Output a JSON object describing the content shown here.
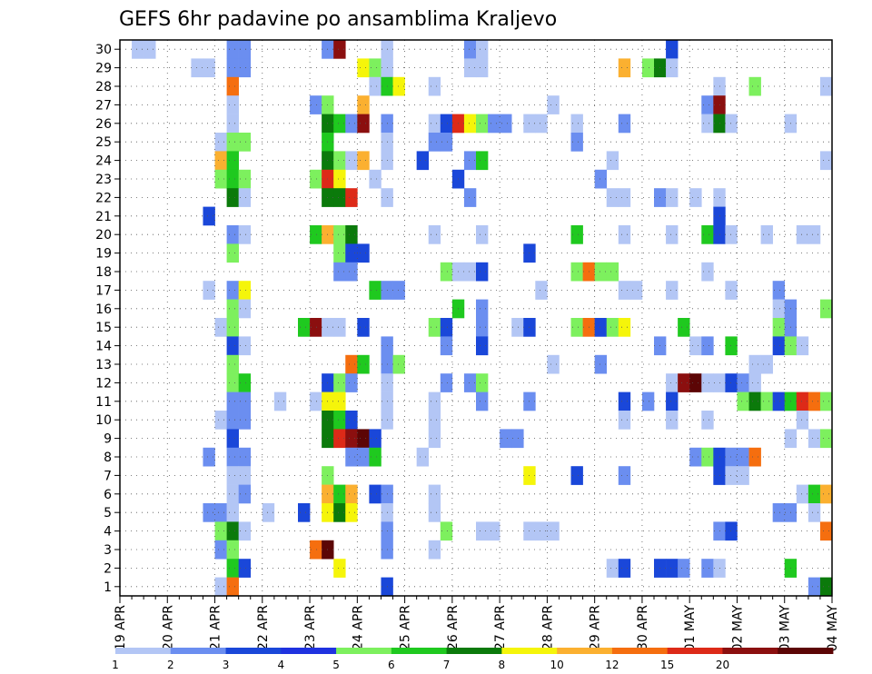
{
  "chart_data": {
    "type": "heatmap",
    "title": "GEFS 6hr padavine po ansamblima Kraljevo",
    "y_members": [
      1,
      2,
      3,
      4,
      5,
      6,
      7,
      8,
      9,
      10,
      11,
      12,
      13,
      14,
      15,
      16,
      17,
      18,
      19,
      20,
      21,
      22,
      23,
      24,
      25,
      26,
      27,
      28,
      29,
      30
    ],
    "x_tick_labels": [
      "19 APR",
      "20 APR",
      "21 APR",
      "22 APR",
      "23 APR",
      "24 APR",
      "25 APR",
      "26 APR",
      "27 APR",
      "28 APR",
      "29 APR",
      "30 APR",
      "01 MAY",
      "02 MAY",
      "03 MAY",
      "04 MAY"
    ],
    "x_steps_per_day": 4,
    "x_step_count": 60,
    "grid": true,
    "color_scale": {
      "labels": [
        "1",
        "2",
        "3",
        "4",
        "5",
        "6",
        "7",
        "8",
        "10",
        "12",
        "15",
        "20"
      ],
      "colors": [
        "#b3c6f5",
        "#6b8ef0",
        "#1a47d9",
        "#1f32e0",
        "#7df05e",
        "#1fc91f",
        "#0b7a0b",
        "#f5f50a",
        "#fbb030",
        "#f56e0f",
        "#dd2a18",
        "#8b0f0f",
        "#5c0505"
      ]
    },
    "cells": [
      [
        30,
        1,
        1
      ],
      [
        30,
        2,
        1
      ],
      [
        30,
        9,
        2
      ],
      [
        30,
        10,
        2
      ],
      [
        30,
        17,
        2
      ],
      [
        30,
        18,
        12
      ],
      [
        30,
        22,
        1
      ],
      [
        30,
        29,
        2
      ],
      [
        30,
        30,
        1
      ],
      [
        30,
        46,
        3
      ],
      [
        29,
        6,
        1
      ],
      [
        29,
        7,
        1
      ],
      [
        29,
        9,
        2
      ],
      [
        29,
        10,
        2
      ],
      [
        29,
        20,
        8
      ],
      [
        29,
        21,
        5
      ],
      [
        29,
        22,
        1
      ],
      [
        29,
        29,
        1
      ],
      [
        29,
        30,
        1
      ],
      [
        29,
        42,
        9
      ],
      [
        29,
        44,
        5
      ],
      [
        29,
        45,
        7
      ],
      [
        29,
        46,
        1
      ],
      [
        28,
        9,
        10
      ],
      [
        28,
        21,
        1
      ],
      [
        28,
        22,
        6
      ],
      [
        28,
        23,
        8
      ],
      [
        28,
        26,
        1
      ],
      [
        28,
        50,
        1
      ],
      [
        28,
        53,
        5
      ],
      [
        28,
        59,
        1
      ],
      [
        27,
        9,
        1
      ],
      [
        27,
        16,
        2
      ],
      [
        27,
        17,
        5
      ],
      [
        27,
        20,
        9
      ],
      [
        27,
        36,
        1
      ],
      [
        27,
        49,
        2
      ],
      [
        27,
        50,
        12
      ],
      [
        26,
        9,
        1
      ],
      [
        26,
        17,
        7
      ],
      [
        26,
        18,
        6
      ],
      [
        26,
        19,
        2
      ],
      [
        26,
        20,
        12
      ],
      [
        26,
        22,
        2
      ],
      [
        26,
        26,
        1
      ],
      [
        26,
        27,
        3
      ],
      [
        26,
        28,
        11
      ],
      [
        26,
        29,
        8
      ],
      [
        26,
        30,
        5
      ],
      [
        26,
        31,
        2
      ],
      [
        26,
        32,
        2
      ],
      [
        26,
        34,
        1
      ],
      [
        26,
        35,
        1
      ],
      [
        26,
        38,
        1
      ],
      [
        26,
        42,
        2
      ],
      [
        26,
        49,
        1
      ],
      [
        26,
        50,
        7
      ],
      [
        26,
        51,
        1
      ],
      [
        26,
        56,
        1
      ],
      [
        25,
        8,
        1
      ],
      [
        25,
        9,
        5
      ],
      [
        25,
        10,
        5
      ],
      [
        25,
        17,
        6
      ],
      [
        25,
        22,
        1
      ],
      [
        25,
        26,
        2
      ],
      [
        25,
        27,
        2
      ],
      [
        25,
        38,
        2
      ],
      [
        24,
        8,
        9
      ],
      [
        24,
        9,
        6
      ],
      [
        24,
        17,
        7
      ],
      [
        24,
        18,
        5
      ],
      [
        24,
        19,
        1
      ],
      [
        24,
        20,
        9
      ],
      [
        24,
        22,
        1
      ],
      [
        24,
        25,
        3
      ],
      [
        24,
        29,
        2
      ],
      [
        24,
        30,
        6
      ],
      [
        24,
        41,
        1
      ],
      [
        24,
        59,
        1
      ],
      [
        23,
        8,
        5
      ],
      [
        23,
        9,
        6
      ],
      [
        23,
        10,
        5
      ],
      [
        23,
        16,
        5
      ],
      [
        23,
        17,
        11
      ],
      [
        23,
        18,
        8
      ],
      [
        23,
        21,
        1
      ],
      [
        23,
        28,
        3
      ],
      [
        23,
        40,
        2
      ],
      [
        22,
        9,
        7
      ],
      [
        22,
        10,
        1
      ],
      [
        22,
        17,
        7
      ],
      [
        22,
        18,
        7
      ],
      [
        22,
        19,
        11
      ],
      [
        22,
        22,
        1
      ],
      [
        22,
        29,
        2
      ],
      [
        22,
        41,
        1
      ],
      [
        22,
        42,
        1
      ],
      [
        22,
        45,
        2
      ],
      [
        22,
        46,
        1
      ],
      [
        22,
        48,
        1
      ],
      [
        22,
        50,
        1
      ],
      [
        21,
        7,
        3
      ],
      [
        21,
        50,
        3
      ],
      [
        20,
        9,
        2
      ],
      [
        20,
        10,
        1
      ],
      [
        20,
        16,
        6
      ],
      [
        20,
        17,
        9
      ],
      [
        20,
        18,
        5
      ],
      [
        20,
        19,
        7
      ],
      [
        20,
        26,
        1
      ],
      [
        20,
        30,
        1
      ],
      [
        20,
        38,
        6
      ],
      [
        20,
        42,
        1
      ],
      [
        20,
        46,
        1
      ],
      [
        20,
        49,
        6
      ],
      [
        20,
        50,
        3
      ],
      [
        20,
        51,
        1
      ],
      [
        20,
        54,
        1
      ],
      [
        20,
        57,
        1
      ],
      [
        20,
        58,
        1
      ],
      [
        19,
        9,
        5
      ],
      [
        19,
        18,
        5
      ],
      [
        19,
        19,
        3
      ],
      [
        19,
        20,
        3
      ],
      [
        19,
        34,
        3
      ],
      [
        18,
        18,
        2
      ],
      [
        18,
        19,
        2
      ],
      [
        18,
        27,
        5
      ],
      [
        18,
        28,
        1
      ],
      [
        18,
        29,
        1
      ],
      [
        18,
        30,
        3
      ],
      [
        18,
        38,
        5
      ],
      [
        18,
        39,
        10
      ],
      [
        18,
        40,
        5
      ],
      [
        18,
        41,
        5
      ],
      [
        18,
        49,
        1
      ],
      [
        17,
        7,
        1
      ],
      [
        17,
        9,
        2
      ],
      [
        17,
        10,
        8
      ],
      [
        17,
        21,
        6
      ],
      [
        17,
        22,
        2
      ],
      [
        17,
        23,
        2
      ],
      [
        17,
        35,
        1
      ],
      [
        17,
        42,
        1
      ],
      [
        17,
        43,
        1
      ],
      [
        17,
        46,
        1
      ],
      [
        17,
        51,
        1
      ],
      [
        17,
        55,
        2
      ],
      [
        16,
        9,
        5
      ],
      [
        16,
        10,
        1
      ],
      [
        16,
        28,
        6
      ],
      [
        16,
        30,
        2
      ],
      [
        16,
        55,
        1
      ],
      [
        16,
        56,
        2
      ],
      [
        16,
        59,
        5
      ],
      [
        15,
        8,
        1
      ],
      [
        15,
        9,
        5
      ],
      [
        15,
        15,
        6
      ],
      [
        15,
        16,
        12
      ],
      [
        15,
        17,
        1
      ],
      [
        15,
        18,
        1
      ],
      [
        15,
        20,
        3
      ],
      [
        15,
        26,
        5
      ],
      [
        15,
        27,
        3
      ],
      [
        15,
        30,
        2
      ],
      [
        15,
        33,
        1
      ],
      [
        15,
        34,
        3
      ],
      [
        15,
        38,
        5
      ],
      [
        15,
        39,
        10
      ],
      [
        15,
        40,
        3
      ],
      [
        15,
        41,
        5
      ],
      [
        15,
        42,
        8
      ],
      [
        15,
        47,
        6
      ],
      [
        15,
        55,
        5
      ],
      [
        15,
        56,
        2
      ],
      [
        14,
        9,
        3
      ],
      [
        14,
        10,
        1
      ],
      [
        14,
        22,
        2
      ],
      [
        14,
        27,
        2
      ],
      [
        14,
        30,
        3
      ],
      [
        14,
        45,
        2
      ],
      [
        14,
        48,
        1
      ],
      [
        14,
        49,
        2
      ],
      [
        14,
        51,
        6
      ],
      [
        14,
        55,
        3
      ],
      [
        14,
        56,
        5
      ],
      [
        14,
        57,
        1
      ],
      [
        13,
        9,
        5
      ],
      [
        13,
        19,
        10
      ],
      [
        13,
        20,
        6
      ],
      [
        13,
        22,
        2
      ],
      [
        13,
        23,
        5
      ],
      [
        13,
        36,
        1
      ],
      [
        13,
        40,
        2
      ],
      [
        13,
        53,
        1
      ],
      [
        13,
        54,
        1
      ],
      [
        12,
        9,
        5
      ],
      [
        12,
        10,
        6
      ],
      [
        12,
        17,
        3
      ],
      [
        12,
        18,
        5
      ],
      [
        12,
        19,
        2
      ],
      [
        12,
        22,
        1
      ],
      [
        12,
        27,
        2
      ],
      [
        12,
        29,
        2
      ],
      [
        12,
        30,
        5
      ],
      [
        12,
        46,
        1
      ],
      [
        12,
        47,
        12
      ],
      [
        12,
        48,
        13
      ],
      [
        12,
        49,
        1
      ],
      [
        12,
        50,
        1
      ],
      [
        12,
        51,
        3
      ],
      [
        12,
        52,
        2
      ],
      [
        12,
        53,
        1
      ],
      [
        11,
        9,
        2
      ],
      [
        11,
        10,
        2
      ],
      [
        11,
        13,
        1
      ],
      [
        11,
        16,
        1
      ],
      [
        11,
        17,
        8
      ],
      [
        11,
        18,
        8
      ],
      [
        11,
        22,
        1
      ],
      [
        11,
        26,
        1
      ],
      [
        11,
        30,
        2
      ],
      [
        11,
        34,
        2
      ],
      [
        11,
        42,
        3
      ],
      [
        11,
        44,
        2
      ],
      [
        11,
        46,
        3
      ],
      [
        11,
        52,
        5
      ],
      [
        11,
        53,
        7
      ],
      [
        11,
        54,
        5
      ],
      [
        11,
        55,
        3
      ],
      [
        11,
        56,
        6
      ],
      [
        11,
        57,
        11
      ],
      [
        11,
        58,
        10
      ],
      [
        11,
        59,
        5
      ],
      [
        10,
        8,
        1
      ],
      [
        10,
        9,
        2
      ],
      [
        10,
        10,
        2
      ],
      [
        10,
        17,
        7
      ],
      [
        10,
        18,
        6
      ],
      [
        10,
        19,
        3
      ],
      [
        10,
        22,
        1
      ],
      [
        10,
        26,
        1
      ],
      [
        10,
        42,
        1
      ],
      [
        10,
        46,
        1
      ],
      [
        10,
        49,
        1
      ],
      [
        10,
        57,
        1
      ],
      [
        9,
        9,
        3
      ],
      [
        9,
        17,
        7
      ],
      [
        9,
        18,
        11
      ],
      [
        9,
        19,
        12
      ],
      [
        9,
        20,
        13
      ],
      [
        9,
        21,
        3
      ],
      [
        9,
        26,
        1
      ],
      [
        9,
        32,
        2
      ],
      [
        9,
        33,
        2
      ],
      [
        9,
        56,
        1
      ],
      [
        9,
        58,
        1
      ],
      [
        9,
        59,
        5
      ],
      [
        8,
        7,
        2
      ],
      [
        8,
        9,
        2
      ],
      [
        8,
        10,
        2
      ],
      [
        8,
        19,
        2
      ],
      [
        8,
        20,
        2
      ],
      [
        8,
        21,
        6
      ],
      [
        8,
        25,
        1
      ],
      [
        8,
        48,
        2
      ],
      [
        8,
        49,
        5
      ],
      [
        8,
        50,
        3
      ],
      [
        8,
        51,
        2
      ],
      [
        8,
        52,
        2
      ],
      [
        8,
        53,
        10
      ],
      [
        7,
        9,
        1
      ],
      [
        7,
        10,
        1
      ],
      [
        7,
        17,
        5
      ],
      [
        7,
        34,
        8
      ],
      [
        7,
        38,
        3
      ],
      [
        7,
        42,
        2
      ],
      [
        7,
        50,
        3
      ],
      [
        7,
        51,
        1
      ],
      [
        7,
        52,
        1
      ],
      [
        6,
        9,
        1
      ],
      [
        6,
        10,
        2
      ],
      [
        6,
        17,
        9
      ],
      [
        6,
        18,
        6
      ],
      [
        6,
        19,
        9
      ],
      [
        6,
        21,
        3
      ],
      [
        6,
        22,
        2
      ],
      [
        6,
        26,
        1
      ],
      [
        6,
        57,
        1
      ],
      [
        6,
        58,
        6
      ],
      [
        6,
        59,
        9
      ],
      [
        5,
        7,
        2
      ],
      [
        5,
        8,
        2
      ],
      [
        5,
        9,
        1
      ],
      [
        5,
        12,
        1
      ],
      [
        5,
        15,
        3
      ],
      [
        5,
        17,
        8
      ],
      [
        5,
        18,
        7
      ],
      [
        5,
        19,
        8
      ],
      [
        5,
        22,
        1
      ],
      [
        5,
        26,
        1
      ],
      [
        5,
        55,
        2
      ],
      [
        5,
        56,
        2
      ],
      [
        5,
        58,
        1
      ],
      [
        4,
        8,
        5
      ],
      [
        4,
        9,
        7
      ],
      [
        4,
        10,
        1
      ],
      [
        4,
        22,
        2
      ],
      [
        4,
        27,
        5
      ],
      [
        4,
        30,
        1
      ],
      [
        4,
        31,
        1
      ],
      [
        4,
        34,
        1
      ],
      [
        4,
        35,
        1
      ],
      [
        4,
        36,
        1
      ],
      [
        4,
        50,
        2
      ],
      [
        4,
        51,
        3
      ],
      [
        4,
        59,
        10
      ],
      [
        3,
        8,
        2
      ],
      [
        3,
        9,
        5
      ],
      [
        3,
        16,
        10
      ],
      [
        3,
        17,
        13
      ],
      [
        3,
        22,
        2
      ],
      [
        3,
        26,
        1
      ],
      [
        2,
        9,
        6
      ],
      [
        2,
        10,
        3
      ],
      [
        2,
        18,
        8
      ],
      [
        2,
        41,
        1
      ],
      [
        2,
        42,
        3
      ],
      [
        2,
        45,
        3
      ],
      [
        2,
        46,
        3
      ],
      [
        2,
        47,
        2
      ],
      [
        2,
        49,
        2
      ],
      [
        2,
        50,
        1
      ],
      [
        2,
        56,
        6
      ],
      [
        1,
        8,
        1
      ],
      [
        1,
        9,
        10
      ],
      [
        1,
        22,
        3
      ],
      [
        1,
        58,
        2
      ],
      [
        1,
        59,
        7
      ]
    ]
  }
}
